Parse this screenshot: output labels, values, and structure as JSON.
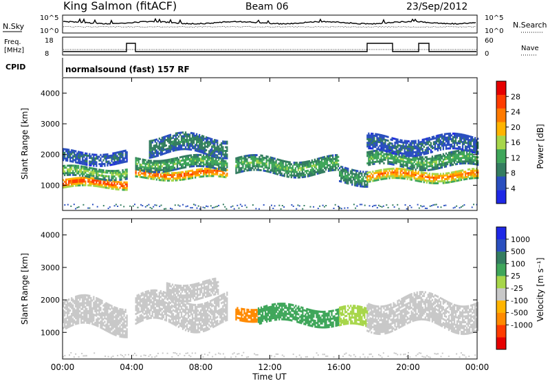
{
  "header": {
    "station": "King Salmon (fitACF)",
    "beam": "Beam 06",
    "date": "23/Sep/2012"
  },
  "top_panels": {
    "nsky_label": "N.Sky",
    "nsearch_label": "N.Search",
    "noise_ticks_left": [
      "10^5",
      "10^0"
    ],
    "noise_ticks_right": [
      "10^5",
      "10^0"
    ],
    "freq_label_1": "Freq.",
    "freq_label_2": "[MHz]",
    "freq_ticks": [
      "18",
      "8"
    ],
    "nave_label": "Nave",
    "nave_ticks": [
      "60",
      "0"
    ],
    "cpid_label": "CPID",
    "cpid_text": "normalsound (fast) 157 RF"
  },
  "colors": {
    "power_scale": [
      "#1e28e6",
      "#2a4fbf",
      "#347d60",
      "#3fa65a",
      "#a7d64a",
      "#ffb400",
      "#ff7a00",
      "#ff3c00",
      "#e60000"
    ],
    "velocity_scale": [
      "#e60000",
      "#ff3c00",
      "#ff8a00",
      "#ffb400",
      "#c8c8c8",
      "#a7d64a",
      "#3fa65a",
      "#347d60",
      "#2a4fbf",
      "#1e28e6"
    ]
  },
  "chart_data": [
    {
      "type": "heatmap",
      "name": "power",
      "ylabel": "Slant Range [km]",
      "yticks": [
        "1000",
        "2000",
        "3000",
        "4000"
      ],
      "ylim": [
        180,
        4500
      ],
      "colorbar_label": "Power [dB]",
      "colorbar_ticks": [
        "4",
        "8",
        "12",
        "16",
        "20",
        "24",
        "28"
      ],
      "clim": [
        0,
        32
      ],
      "bands": [
        {
          "x": [
            0,
            3.7
          ],
          "range_center": 1050,
          "range_width": 300,
          "value": 28
        },
        {
          "x": [
            0,
            3.7
          ],
          "range_center": 1400,
          "range_width": 350,
          "value": 16
        },
        {
          "x": [
            0,
            3.7
          ],
          "range_center": 1900,
          "range_width": 400,
          "value": 8
        },
        {
          "x": [
            4.2,
            9.5
          ],
          "range_center": 1350,
          "range_width": 300,
          "value": 26
        },
        {
          "x": [
            4.2,
            9.5
          ],
          "range_center": 1700,
          "range_width": 400,
          "value": 14
        },
        {
          "x": [
            5.0,
            9.5
          ],
          "range_center": 2300,
          "range_width": 600,
          "value": 10
        },
        {
          "x": [
            10.0,
            16.0
          ],
          "range_center": 1600,
          "range_width": 500,
          "value": 14
        },
        {
          "x": [
            16.0,
            17.6
          ],
          "range_center": 1300,
          "range_width": 500,
          "value": 12
        },
        {
          "x": [
            17.6,
            24
          ],
          "range_center": 1300,
          "range_width": 350,
          "value": 24
        },
        {
          "x": [
            17.6,
            24
          ],
          "range_center": 1800,
          "range_width": 450,
          "value": 14
        },
        {
          "x": [
            17.6,
            24
          ],
          "range_center": 2300,
          "range_width": 500,
          "value": 8
        }
      ]
    },
    {
      "type": "heatmap",
      "name": "velocity",
      "ylabel": "Slant Range [km]",
      "yticks": [
        "1000",
        "2000",
        "3000",
        "4000"
      ],
      "ylim": [
        180,
        4500
      ],
      "colorbar_label": "Velocity [m s⁻¹]",
      "colorbar_ticks": [
        "1000",
        "500",
        "100",
        "25",
        "-25",
        "-100",
        "-500",
        "-1000"
      ],
      "bands": [
        {
          "x": [
            0,
            3.7
          ],
          "range_center": 1500,
          "range_width": 900,
          "value": 0
        },
        {
          "x": [
            4.2,
            9.5
          ],
          "range_center": 1650,
          "range_width": 900,
          "value": 0
        },
        {
          "x": [
            6.0,
            9.0
          ],
          "range_center": 2300,
          "range_width": 500,
          "value": 0
        },
        {
          "x": [
            10.0,
            11.3
          ],
          "range_center": 1600,
          "range_width": 400,
          "value": -150
        },
        {
          "x": [
            11.3,
            16.0
          ],
          "range_center": 1500,
          "range_width": 500,
          "value": 120
        },
        {
          "x": [
            16.0,
            17.6
          ],
          "range_center": 1400,
          "range_width": 600,
          "value": 60
        },
        {
          "x": [
            17.6,
            24
          ],
          "range_center": 1600,
          "range_width": 900,
          "value": 0
        }
      ]
    }
  ],
  "xaxis": {
    "label": "Time UT",
    "ticks": [
      "00:00",
      "04:00",
      "08:00",
      "12:00",
      "16:00",
      "20:00",
      "00:00"
    ],
    "xlim": [
      0,
      24
    ]
  }
}
